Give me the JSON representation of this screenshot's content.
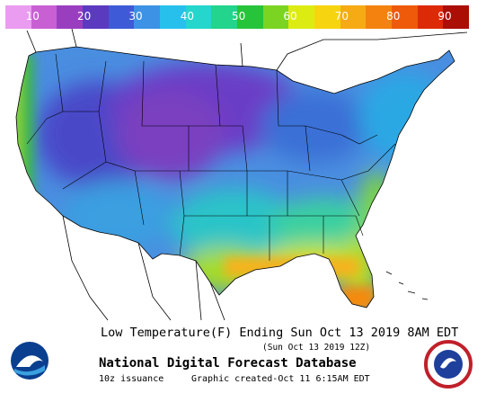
{
  "legend": {
    "ticks": [
      "10",
      "20",
      "30",
      "40",
      "50",
      "60",
      "70",
      "80",
      "90"
    ],
    "colors": [
      "#ea9cf0",
      "#c860d4",
      "#9a3ec0",
      "#5c3ac0",
      "#3e5ad6",
      "#3e92e6",
      "#27c0ec",
      "#24d6cc",
      "#22d48c",
      "#26c43a",
      "#7cd422",
      "#dcec12",
      "#f6d410",
      "#f6aa14",
      "#f4820e",
      "#ee5a0a",
      "#dc2a06",
      "#aa0e04"
    ]
  },
  "map": {
    "colors": {
      "ocean": "#ffffff",
      "outline": "#000000",
      "west_coast": "#39b54a",
      "far_west_coast": "#8fd63a",
      "great_basin": "#4a48c8",
      "rockies": "#7a3fc0",
      "northern_plains": "#6b3ec6",
      "southwest": "#3a9fe0",
      "southern_plains": "#2bc4c8",
      "midwest": "#4a8ee0",
      "great_lakes": "#3a6fd6",
      "northeast": "#2aa8e4",
      "southeast": "#3ad0a0",
      "gulf_coast": "#cde61a",
      "gulf_edge": "#f6b21a",
      "florida": "#b8e01c",
      "florida_edge": "#f48a10",
      "texas_coast": "#a6dc26",
      "atlantic_coast": "#7fd640"
    }
  },
  "caption": {
    "title": "Low Temperature(F) Ending Sun Oct 13 2019  8AM EDT",
    "subtitle": "(Sun Oct 13 2019 12Z)",
    "main": "National Digital Forecast Database",
    "issuance": "10z issuance",
    "created": "Graphic created-Oct 11  6:15AM EDT"
  },
  "logos": {
    "noaa_text": "NOAA",
    "nws_text": "NATIONAL WEATHER SERVICE"
  }
}
